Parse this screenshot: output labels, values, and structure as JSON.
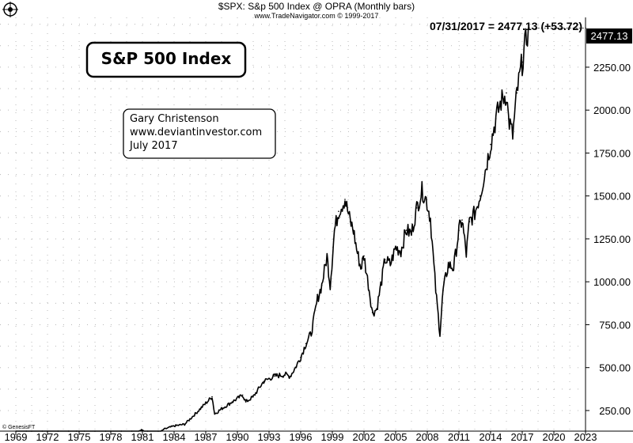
{
  "header": {
    "title": "$SPX:  S&p 500 Index @ OPRA  (Monthly bars)",
    "subtitle": "www.TradeNavigator.com © 1999-2017"
  },
  "readout": "07/31/2017 = 2477.13 (+53.72)",
  "last_price_label": "2477.13",
  "title_box": "S&P 500 Index",
  "credit_box": {
    "line1": "Gary Christenson",
    "line2": "www.deviantinvestor.com",
    "line3": "July 2017"
  },
  "logo_text": "© GenesisFT",
  "colors": {
    "price": "#000000",
    "grid": "#b8b8b8",
    "background": "#ffffff"
  },
  "chart_data": {
    "type": "line",
    "title": "S&P 500 Index",
    "xlabel": "",
    "ylabel": "",
    "xlim": [
      1969,
      2023
    ],
    "ylim": [
      130,
      2540
    ],
    "grid": true,
    "legend": "none",
    "x_ticks": [
      "1969",
      "1972",
      "1975",
      "1978",
      "1981",
      "1984",
      "1987",
      "1990",
      "1993",
      "1996",
      "1999",
      "2002",
      "2005",
      "2008",
      "2011",
      "2014",
      "2017",
      "2020",
      "2023"
    ],
    "y_ticks": [
      "250.00",
      "500.00",
      "750.00",
      "1000.00",
      "1250.00",
      "1500.00",
      "1750.00",
      "2000.00",
      "2250.00"
    ],
    "series": [
      {
        "x": [
          1969.0,
          1970.0,
          1970.5,
          1971.5,
          1972.0,
          1973.0,
          1974.0,
          1974.75,
          1975.5,
          1976.5,
          1977.5,
          1978.0,
          1979.0,
          1980.0,
          1980.9,
          1981.5,
          1982.5,
          1983.0,
          1984.0,
          1985.0,
          1986.0,
          1987.6,
          1987.85,
          1988.5,
          1989.5,
          1990.5,
          1990.8,
          1991.5,
          1992.5,
          1993.5,
          1994.5,
          1995.0,
          1995.5,
          1996.0,
          1996.5,
          1997.0,
          1997.6,
          1998.0,
          1998.5,
          1998.8,
          1999.2,
          1999.6,
          2000.2,
          2000.7,
          2001.0,
          2001.3,
          2001.7,
          2002.0,
          2002.5,
          2002.8,
          2003.2,
          2003.6,
          2004.0,
          2004.5,
          2005.0,
          2005.5,
          2006.0,
          2006.5,
          2007.0,
          2007.5,
          2007.9,
          2008.3,
          2008.8,
          2009.2,
          2009.5,
          2010.0,
          2010.5,
          2011.0,
          2011.3,
          2011.7,
          2012.0,
          2012.5,
          2013.0,
          2013.5,
          2014.0,
          2014.5,
          2015.0,
          2015.5,
          2015.7,
          2016.1,
          2016.5,
          2017.0,
          2017.58
        ],
        "values": [
          100,
          90,
          75,
          100,
          115,
          110,
          70,
          70,
          90,
          105,
          95,
          92,
          100,
          110,
          135,
          125,
          110,
          140,
          160,
          170,
          230,
          330,
          230,
          260,
          300,
          340,
          300,
          330,
          420,
          450,
          460,
          450,
          500,
          560,
          640,
          700,
          900,
          980,
          1150,
          980,
          1300,
          1410,
          1480,
          1350,
          1300,
          1190,
          1080,
          1150,
          950,
          820,
          840,
          980,
          1130,
          1100,
          1200,
          1180,
          1300,
          1280,
          1430,
          1530,
          1480,
          1370,
          950,
          700,
          950,
          1100,
          1080,
          1300,
          1360,
          1160,
          1350,
          1400,
          1500,
          1650,
          1800,
          1950,
          2050,
          2100,
          1950,
          1850,
          2100,
          2280,
          2477.13
        ]
      }
    ]
  }
}
